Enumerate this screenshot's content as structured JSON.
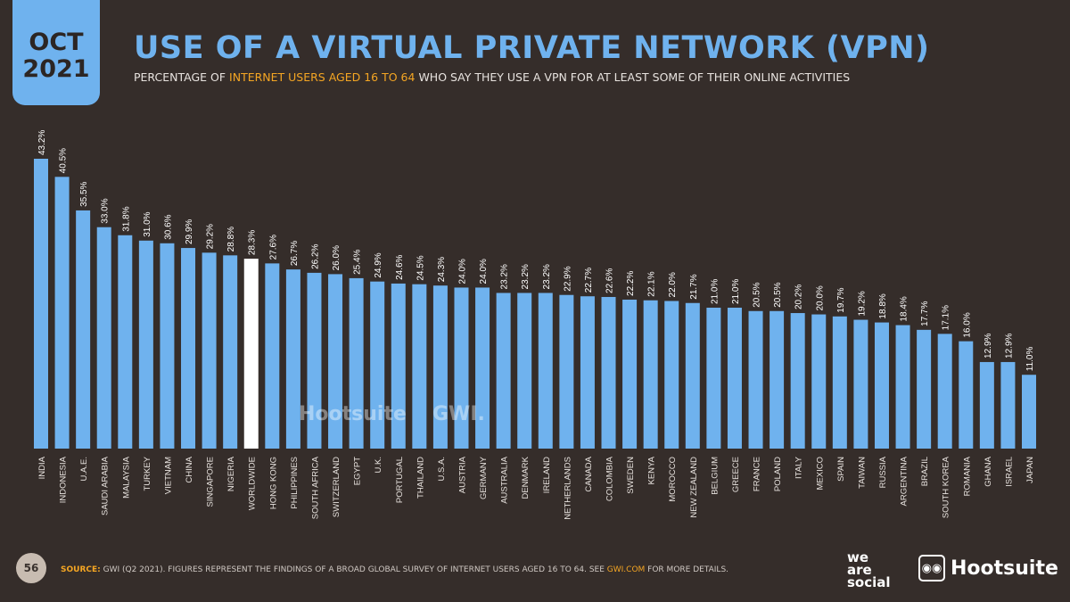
{
  "header": {
    "month": "OCT",
    "year": "2021",
    "title": "USE OF A VIRTUAL PRIVATE NETWORK (VPN)",
    "subtitle_pre": "PERCENTAGE OF ",
    "subtitle_highlight": "INTERNET USERS AGED 16 TO 64",
    "subtitle_post": " WHO SAY THEY USE A VPN FOR AT LEAST SOME OF THEIR ONLINE ACTIVITIES"
  },
  "footer": {
    "page_number": "56",
    "source_label": "SOURCE:",
    "source_text": " GWI (Q2 2021). FIGURES REPRESENT THE FINDINGS OF A BROAD GLOBAL SURVEY OF INTERNET USERS AGED 16 TO 64. SEE ",
    "source_link": "GWI.COM",
    "source_end": " FOR MORE DETAILS.",
    "logo_we_are_social": "we are social",
    "logo_hootsuite": "Hootsuite",
    "watermark_hootsuite": "Hootsuite",
    "watermark_gwi": "GWI."
  },
  "colors": {
    "background": "#352d2a",
    "bar": "#6fb2ee",
    "highlight_bar": "#ffffff",
    "accent": "#f5a623"
  },
  "chart_data": {
    "type": "bar",
    "value_suffix": "%",
    "highlight_category": "WORLDWIDE",
    "ylim": [
      0,
      45
    ],
    "grid": false,
    "categories": [
      "INDIA",
      "INDONESIA",
      "U.A.E.",
      "SAUDI ARABIA",
      "MALAYSIA",
      "TURKEY",
      "VIETNAM",
      "CHINA",
      "SINGAPORE",
      "NIGERIA",
      "WORLDWIDE",
      "HONG KONG",
      "PHILIPPINES",
      "SOUTH AFRICA",
      "SWITZERLAND",
      "EGYPT",
      "U.K.",
      "PORTUGAL",
      "THAILAND",
      "U.S.A.",
      "AUSTRIA",
      "GERMANY",
      "AUSTRALIA",
      "DENMARK",
      "IRELAND",
      "NETHERLANDS",
      "CANADA",
      "COLOMBIA",
      "SWEDEN",
      "KENYA",
      "MOROCCO",
      "NEW ZEALAND",
      "BELGIUM",
      "GREECE",
      "FRANCE",
      "POLAND",
      "ITALY",
      "MEXICO",
      "SPAIN",
      "TAIWAN",
      "RUSSIA",
      "ARGENTINA",
      "BRAZIL",
      "SOUTH KOREA",
      "ROMANIA",
      "GHANA",
      "ISRAEL",
      "JAPAN"
    ],
    "values": [
      43.2,
      40.5,
      35.5,
      33.0,
      31.8,
      31.0,
      30.6,
      29.9,
      29.2,
      28.8,
      28.3,
      27.6,
      26.7,
      26.2,
      26.0,
      25.4,
      24.9,
      24.6,
      24.5,
      24.3,
      24.0,
      24.0,
      23.2,
      23.2,
      23.2,
      22.9,
      22.7,
      22.6,
      22.2,
      22.1,
      22.0,
      21.7,
      21.0,
      21.0,
      20.5,
      20.5,
      20.2,
      20.0,
      19.7,
      19.2,
      18.8,
      18.4,
      17.7,
      17.1,
      16.0,
      12.9,
      12.9,
      11.0
    ]
  }
}
